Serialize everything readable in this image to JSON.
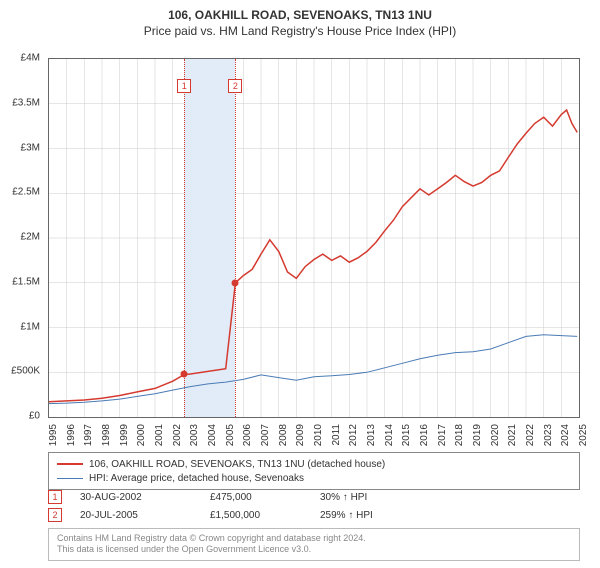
{
  "title": {
    "main": "106, OAKHILL ROAD, SEVENOAKS, TN13 1NU",
    "sub": "Price paid vs. HM Land Registry's House Price Index (HPI)"
  },
  "chart": {
    "type": "line",
    "background_color": "#ffffff",
    "border_color": "#666666",
    "grid_color": "#cccccc",
    "x": {
      "min": 1995,
      "max": 2025,
      "ticks": [
        1995,
        1996,
        1997,
        1998,
        1999,
        2000,
        2001,
        2002,
        2003,
        2004,
        2005,
        2006,
        2007,
        2008,
        2009,
        2010,
        2011,
        2012,
        2013,
        2014,
        2015,
        2016,
        2017,
        2018,
        2019,
        2020,
        2021,
        2022,
        2023,
        2024,
        2025
      ]
    },
    "y": {
      "min": 0,
      "max": 4000000,
      "ticks": [
        0,
        500000,
        1000000,
        1500000,
        2000000,
        2500000,
        3000000,
        3500000,
        4000000
      ],
      "tick_labels": [
        "£0",
        "£500K",
        "£1M",
        "£1.5M",
        "£2M",
        "£2.5M",
        "£3M",
        "£3.5M",
        "£4M"
      ]
    },
    "shaded_band": {
      "x_from": 2002.66,
      "x_to": 2005.55,
      "color": "#e2ecf8"
    },
    "event_lines": {
      "color": "#d43a2f",
      "dash": "dotted",
      "width": 1
    },
    "series": [
      {
        "id": "property",
        "label": "106, OAKHILL ROAD, SEVENOAKS, TN13 1NU (detached house)",
        "color": "#d43a2f",
        "width": 1.5,
        "points": [
          [
            1995,
            170000
          ],
          [
            1996,
            180000
          ],
          [
            1997,
            190000
          ],
          [
            1998,
            210000
          ],
          [
            1999,
            240000
          ],
          [
            2000,
            280000
          ],
          [
            2001,
            320000
          ],
          [
            2002,
            400000
          ],
          [
            2002.66,
            475000
          ],
          [
            2003,
            480000
          ],
          [
            2004,
            510000
          ],
          [
            2005,
            540000
          ],
          [
            2005.55,
            1500000
          ],
          [
            2006,
            1580000
          ],
          [
            2006.5,
            1650000
          ],
          [
            2007,
            1820000
          ],
          [
            2007.5,
            1980000
          ],
          [
            2008,
            1850000
          ],
          [
            2008.5,
            1620000
          ],
          [
            2009,
            1550000
          ],
          [
            2009.5,
            1680000
          ],
          [
            2010,
            1760000
          ],
          [
            2010.5,
            1820000
          ],
          [
            2011,
            1750000
          ],
          [
            2011.5,
            1800000
          ],
          [
            2012,
            1730000
          ],
          [
            2012.5,
            1780000
          ],
          [
            2013,
            1850000
          ],
          [
            2013.5,
            1950000
          ],
          [
            2014,
            2080000
          ],
          [
            2014.5,
            2200000
          ],
          [
            2015,
            2350000
          ],
          [
            2015.5,
            2450000
          ],
          [
            2016,
            2550000
          ],
          [
            2016.5,
            2480000
          ],
          [
            2017,
            2550000
          ],
          [
            2017.5,
            2620000
          ],
          [
            2018,
            2700000
          ],
          [
            2018.5,
            2630000
          ],
          [
            2019,
            2580000
          ],
          [
            2019.5,
            2620000
          ],
          [
            2020,
            2700000
          ],
          [
            2020.5,
            2750000
          ],
          [
            2021,
            2900000
          ],
          [
            2021.5,
            3050000
          ],
          [
            2022,
            3170000
          ],
          [
            2022.5,
            3280000
          ],
          [
            2023,
            3350000
          ],
          [
            2023.5,
            3250000
          ],
          [
            2024,
            3380000
          ],
          [
            2024.3,
            3430000
          ],
          [
            2024.6,
            3280000
          ],
          [
            2024.9,
            3180000
          ]
        ]
      },
      {
        "id": "hpi",
        "label": "HPI: Average price, detached house, Sevenoaks",
        "color": "#4a7bb5",
        "width": 1,
        "points": [
          [
            1995,
            150000
          ],
          [
            1996,
            155000
          ],
          [
            1997,
            165000
          ],
          [
            1998,
            180000
          ],
          [
            1999,
            200000
          ],
          [
            2000,
            230000
          ],
          [
            2001,
            260000
          ],
          [
            2002,
            300000
          ],
          [
            2003,
            340000
          ],
          [
            2004,
            370000
          ],
          [
            2005,
            390000
          ],
          [
            2006,
            420000
          ],
          [
            2007,
            470000
          ],
          [
            2008,
            440000
          ],
          [
            2009,
            410000
          ],
          [
            2010,
            450000
          ],
          [
            2011,
            460000
          ],
          [
            2012,
            475000
          ],
          [
            2013,
            500000
          ],
          [
            2014,
            550000
          ],
          [
            2015,
            600000
          ],
          [
            2016,
            650000
          ],
          [
            2017,
            690000
          ],
          [
            2018,
            720000
          ],
          [
            2019,
            730000
          ],
          [
            2020,
            760000
          ],
          [
            2021,
            830000
          ],
          [
            2022,
            900000
          ],
          [
            2023,
            920000
          ],
          [
            2024,
            910000
          ],
          [
            2024.9,
            900000
          ]
        ]
      }
    ],
    "markers": [
      {
        "n": "1",
        "x": 2002.66,
        "y": 475000,
        "color": "#d43a2f"
      },
      {
        "n": "2",
        "x": 2005.55,
        "y": 1500000,
        "color": "#d43a2f"
      }
    ]
  },
  "legend": {
    "border_color": "#888888"
  },
  "events_table": [
    {
      "n": "1",
      "date": "30-AUG-2002",
      "price": "£475,000",
      "pct": "30% ↑ HPI",
      "color": "#d43a2f"
    },
    {
      "n": "2",
      "date": "20-JUL-2005",
      "price": "£1,500,000",
      "pct": "259% ↑ HPI",
      "color": "#d43a2f"
    }
  ],
  "footer": {
    "line1": "Contains HM Land Registry data © Crown copyright and database right 2024.",
    "line2": "This data is licensed under the Open Government Licence v3.0.",
    "color": "#888888",
    "border_color": "#bbbbbb"
  },
  "fonts": {
    "title_size": 12,
    "axis_size": 10,
    "legend_size": 10,
    "footer_size": 9
  }
}
